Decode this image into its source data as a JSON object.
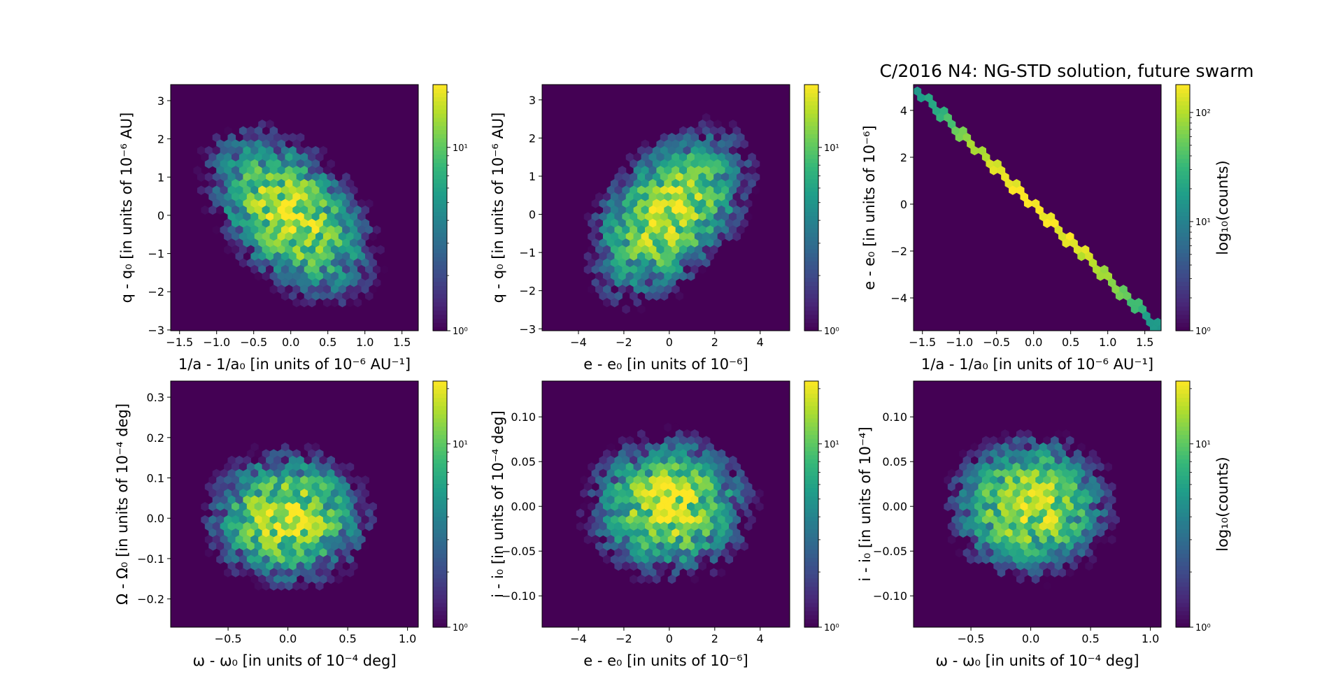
{
  "title": "C/2016 N4: NG-STD solution, future swarm",
  "colormap": "viridis",
  "chart_data": [
    {
      "type": "heatmap",
      "xlabel": "1/a - 1/a₀ [in units of 10⁻⁶ AU⁻¹]",
      "ylabel": "q - q₀ [in units of 10⁻⁶ AU]",
      "xlim": [
        -1.62,
        1.72
      ],
      "ylim": [
        -3.02,
        3.42
      ],
      "xticks": [
        -1.5,
        -1.0,
        -0.5,
        0.0,
        0.5,
        1.0,
        1.5
      ],
      "xtick_labels": [
        "−1.5",
        "−1.0",
        "−0.5",
        "0.0",
        "0.5",
        "1.0",
        "1.5"
      ],
      "yticks": [
        -3,
        -2,
        -1,
        0,
        1,
        2,
        3
      ],
      "ytick_labels": [
        "−3",
        "−2",
        "−1",
        "0",
        "1",
        "2",
        "3"
      ],
      "cmin": 1,
      "cmax": 22,
      "cbar_ticks": [
        1,
        10
      ],
      "cbar_labels": [
        "10⁰",
        "10¹"
      ],
      "cbar_label": "",
      "dist": {
        "sx": 0.5,
        "sy": 1.0,
        "rho": -0.45,
        "peak": 20
      }
    },
    {
      "type": "heatmap",
      "xlabel": "e - e₀ [in units of 10⁻⁶]",
      "ylabel": "q - q₀ [in units of 10⁻⁶ AU]",
      "xlim": [
        -5.6,
        5.3
      ],
      "ylim": [
        -3.05,
        3.4
      ],
      "xticks": [
        -4,
        -2,
        0,
        2,
        4
      ],
      "xtick_labels": [
        "−4",
        "−2",
        "0",
        "2",
        "4"
      ],
      "yticks": [
        -3,
        -2,
        -1,
        0,
        1,
        2,
        3
      ],
      "ytick_labels": [
        "−3",
        "−2",
        "−1",
        "0",
        "1",
        "2",
        "3"
      ],
      "cmin": 1,
      "cmax": 22,
      "cbar_ticks": [
        1,
        10
      ],
      "cbar_labels": [
        "10⁰",
        "10¹"
      ],
      "cbar_label": "",
      "dist": {
        "sx": 1.6,
        "sy": 1.0,
        "rho": 0.45,
        "peak": 20
      }
    },
    {
      "type": "heatmap",
      "xlabel": "1/a - 1/a₀ [in units of 10⁻⁶ AU⁻¹]",
      "ylabel": "e - e₀ [in units of 10⁻⁶]",
      "xlim": [
        -1.62,
        1.72
      ],
      "ylim": [
        -5.4,
        5.1
      ],
      "xticks": [
        -1.5,
        -1.0,
        -0.5,
        0.0,
        0.5,
        1.0,
        1.5
      ],
      "xtick_labels": [
        "−1.5",
        "−1.0",
        "−0.5",
        "0.0",
        "0.5",
        "1.0",
        "1.5"
      ],
      "yticks": [
        -4,
        -2,
        0,
        2,
        4
      ],
      "ytick_labels": [
        "−4",
        "−2",
        "0",
        "2",
        "4"
      ],
      "cmin": 1,
      "cmax": 180,
      "cbar_ticks": [
        1,
        10,
        100
      ],
      "cbar_labels": [
        "10⁰",
        "10¹",
        "10²"
      ],
      "cbar_label": "log₁₀(counts)",
      "line": {
        "x0": -1.55,
        "y0": 4.8,
        "x1": 1.68,
        "y1": -5.3,
        "peak": 180
      }
    },
    {
      "type": "heatmap",
      "xlabel": "ω - ω₀ [in units of 10⁻⁴ deg]",
      "ylabel": "Ω - Ω₀ [in units of 10⁻⁴ deg]",
      "xlim": [
        -0.98,
        1.09
      ],
      "ylim": [
        -0.27,
        0.34
      ],
      "xticks": [
        -0.5,
        0.0,
        0.5,
        1.0
      ],
      "xtick_labels": [
        "−0.5",
        "0.0",
        "0.5",
        "1.0"
      ],
      "yticks": [
        -0.2,
        -0.1,
        0.0,
        0.1,
        0.2,
        0.3
      ],
      "ytick_labels": [
        "−0.2",
        "−0.1",
        "0.0",
        "0.1",
        "0.2",
        "0.3"
      ],
      "cmin": 1,
      "cmax": 22,
      "cbar_ticks": [
        1,
        10
      ],
      "cbar_labels": [
        "10⁰",
        "10¹"
      ],
      "cbar_label": "",
      "dist": {
        "sx": 0.3,
        "sy": 0.075,
        "rho": 0.0,
        "peak": 20
      }
    },
    {
      "type": "heatmap",
      "xlabel": "e - e₀ [in units of 10⁻⁶]",
      "ylabel": "i - i₀ [in units of 10⁻⁴ deg]",
      "xlim": [
        -5.6,
        5.3
      ],
      "ylim": [
        -0.135,
        0.14
      ],
      "xticks": [
        -4,
        -2,
        0,
        2,
        4
      ],
      "xtick_labels": [
        "−4",
        "−2",
        "0",
        "2",
        "4"
      ],
      "yticks": [
        -0.1,
        -0.05,
        0.0,
        0.05,
        0.1
      ],
      "ytick_labels": [
        "−0.10",
        "−0.05",
        "0.00",
        "0.05",
        "0.10"
      ],
      "cmin": 1,
      "cmax": 22,
      "cbar_ticks": [
        1,
        10
      ],
      "cbar_labels": [
        "10⁰",
        "10¹"
      ],
      "cbar_label": "",
      "dist": {
        "sx": 1.6,
        "sy": 0.035,
        "rho": 0.0,
        "peak": 20
      }
    },
    {
      "type": "heatmap",
      "xlabel": "ω - ω₀ [in units of 10⁻⁴ deg]",
      "ylabel": "i - i₀ [in units of 10⁻⁴]",
      "xlim": [
        -0.98,
        1.09
      ],
      "ylim": [
        -0.135,
        0.14
      ],
      "xticks": [
        -0.5,
        0.0,
        0.5,
        1.0
      ],
      "xtick_labels": [
        "−0.5",
        "0.0",
        "0.5",
        "1.0"
      ],
      "yticks": [
        -0.1,
        -0.05,
        0.0,
        0.05,
        0.1
      ],
      "ytick_labels": [
        "−0.10",
        "−0.05",
        "0.00",
        "0.05",
        "0.10"
      ],
      "cmin": 1,
      "cmax": 22,
      "cbar_ticks": [
        1,
        10
      ],
      "cbar_labels": [
        "10⁰",
        "10¹"
      ],
      "cbar_label": "log₁₀(counts)",
      "dist": {
        "sx": 0.3,
        "sy": 0.035,
        "rho": 0.0,
        "peak": 20
      }
    }
  ]
}
